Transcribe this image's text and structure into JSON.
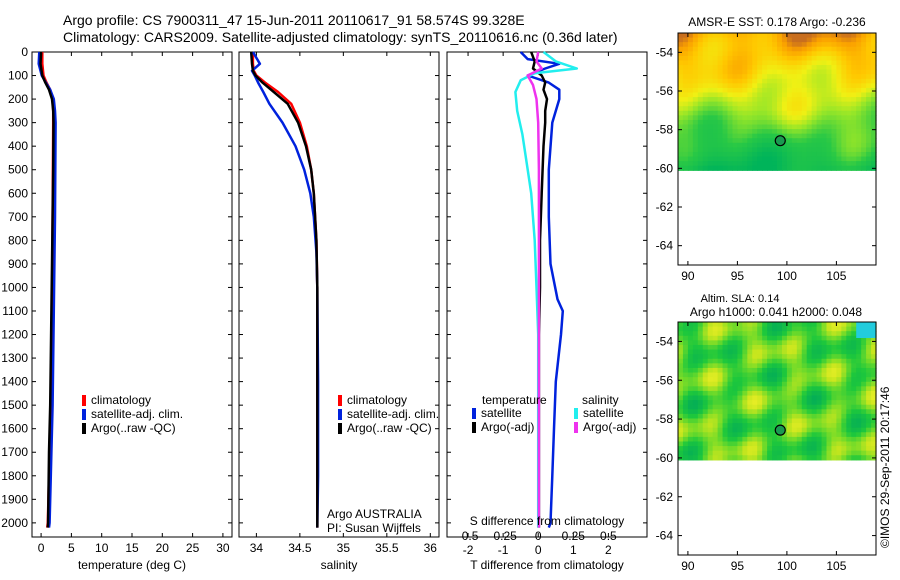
{
  "header": {
    "title1": "Argo profile: CS 7900311_47 15-Jun-2011 20110617_91 58.574S 99.328E",
    "title2": "Climatology: CARS2009. Satellite-adjusted climatology: synTS_20110616.nc (0.36d later)"
  },
  "colors": {
    "red": "#ff0000",
    "blue": "#0022dd",
    "black": "#000000",
    "cyan": "#22eeee",
    "magenta": "#ee33ee"
  },
  "depth_axis": {
    "ticks": [
      0,
      100,
      200,
      300,
      400,
      500,
      600,
      700,
      800,
      900,
      1000,
      1100,
      1200,
      1300,
      1400,
      1500,
      1600,
      1700,
      1800,
      1900,
      2000
    ],
    "range": [
      0,
      2060
    ]
  },
  "chart_data": [
    {
      "type": "line",
      "xlabel": "temperature (deg C)",
      "xlim": [
        -1.5,
        31.5
      ],
      "xticks": [
        0,
        5,
        10,
        15,
        20,
        25,
        30
      ],
      "legend": {
        "position": "lower-right",
        "entries": [
          "climatology",
          "satellite-adj. clim.",
          "Argo(..raw -QC)"
        ]
      },
      "series": [
        {
          "name": "climatology",
          "color": "red",
          "x": [
            0.2,
            0.2,
            0.4,
            0.9,
            1.5,
            1.9,
            2.0,
            2.0,
            1.95,
            1.9,
            1.85,
            1.8,
            1.7,
            1.6,
            1.5,
            1.4,
            1.3,
            1.2,
            1.1,
            1.0
          ],
          "y": [
            0,
            50,
            100,
            130,
            160,
            200,
            250,
            300,
            500,
            700,
            900,
            1100,
            1300,
            1500,
            1600,
            1700,
            1800,
            1900,
            2000,
            2020
          ]
        },
        {
          "name": "satellite-adj. clim.",
          "color": "blue",
          "x": [
            -0.3,
            -0.4,
            0.1,
            0.8,
            1.5,
            2.1,
            2.3,
            2.4,
            2.35,
            2.3,
            2.2,
            2.1,
            2.0,
            1.9,
            1.8,
            1.7,
            1.6,
            1.5,
            1.4,
            1.3
          ],
          "y": [
            0,
            50,
            100,
            130,
            160,
            200,
            250,
            300,
            500,
            700,
            900,
            1100,
            1300,
            1500,
            1600,
            1700,
            1800,
            1900,
            2000,
            2020
          ]
        },
        {
          "name": "Argo(..raw -QC)",
          "color": "black",
          "x": [
            0.0,
            -0.1,
            0.2,
            0.7,
            1.3,
            1.8,
            2.0,
            2.05,
            2.0,
            1.9,
            1.8,
            1.7,
            1.6,
            1.5,
            1.4,
            1.3,
            1.25,
            1.2,
            1.15,
            1.1
          ],
          "y": [
            0,
            50,
            100,
            130,
            160,
            200,
            250,
            300,
            500,
            700,
            900,
            1100,
            1300,
            1500,
            1600,
            1700,
            1800,
            1900,
            2000,
            2020
          ]
        }
      ]
    },
    {
      "type": "line",
      "xlabel": "salinity",
      "xlim": [
        33.8,
        36.1
      ],
      "xticks": [
        34,
        34.5,
        35,
        35.5,
        36
      ],
      "legend": {
        "position": "lower-right",
        "entries": [
          "climatology",
          "satellite-adj. clim.",
          "Argo(..raw -QC)"
        ]
      },
      "annotation": [
        "Argo AUSTRALIA",
        "PI: Susan Wijffels"
      ],
      "series": [
        {
          "name": "climatology",
          "color": "red",
          "x": [
            33.96,
            33.96,
            33.97,
            34.0,
            34.1,
            34.25,
            34.4,
            34.5,
            34.58,
            34.63,
            34.66,
            34.69,
            34.7,
            34.7,
            34.7,
            34.7
          ],
          "y": [
            0,
            50,
            80,
            100,
            130,
            170,
            220,
            300,
            400,
            500,
            600,
            800,
            1000,
            1400,
            1800,
            2020
          ]
        },
        {
          "name": "satellite-adj. clim.",
          "color": "blue",
          "x": [
            33.96,
            34.04,
            33.95,
            33.98,
            34.02,
            34.08,
            34.15,
            34.3,
            34.45,
            34.55,
            34.62,
            34.66,
            34.69,
            34.7,
            34.71,
            34.71,
            34.7
          ],
          "y": [
            0,
            50,
            80,
            100,
            130,
            170,
            220,
            300,
            400,
            500,
            600,
            700,
            850,
            1000,
            1400,
            1800,
            2020
          ]
        },
        {
          "name": "Argo(..raw -QC)",
          "color": "black",
          "x": [
            33.94,
            33.95,
            33.96,
            33.99,
            34.07,
            34.2,
            34.36,
            34.48,
            34.57,
            34.63,
            34.66,
            34.69,
            34.7,
            34.7,
            34.7,
            34.7
          ],
          "y": [
            0,
            50,
            80,
            100,
            130,
            170,
            220,
            300,
            400,
            500,
            600,
            800,
            1000,
            1400,
            1800,
            2020
          ]
        }
      ]
    },
    {
      "type": "line",
      "xlabel": "T difference from climatology",
      "xlabel2": "S difference from climatology",
      "xlim": [
        -2.6,
        3.1
      ],
      "xticks": [
        -2,
        -1,
        0,
        1,
        2
      ],
      "xticks2": [
        -0.5,
        -0.25,
        0,
        0.25,
        0.5
      ],
      "legend": {
        "position": "lower-right",
        "headers": [
          "temperature",
          "salinity"
        ],
        "entries": [
          "satellite",
          "Argo(-adj)",
          "satellite",
          "Argo(-adj)"
        ]
      },
      "series": [
        {
          "name": "temperature satellite",
          "color": "blue",
          "x": [
            -0.5,
            -0.3,
            0.6,
            0.2,
            -0.3,
            0.3,
            0.6,
            0.6,
            0.4,
            0.3,
            0.3,
            0.35,
            0.55,
            0.7,
            0.65,
            0.5,
            0.45,
            0.4,
            0.35,
            0.3
          ],
          "y": [
            0,
            30,
            50,
            70,
            100,
            130,
            160,
            200,
            300,
            500,
            700,
            900,
            1050,
            1100,
            1200,
            1400,
            1600,
            1800,
            2000,
            2020
          ]
        },
        {
          "name": "temperature Argo(-adj)",
          "color": "black",
          "x": [
            -0.2,
            -0.1,
            -0.15,
            0.1,
            0.2,
            0.15,
            0.25,
            0.2,
            0.2,
            0.15,
            0.1,
            0.05,
            0.05,
            0.02,
            0.02,
            0.02,
            0.02,
            0.02
          ],
          "y": [
            0,
            40,
            70,
            100,
            130,
            160,
            200,
            250,
            300,
            400,
            600,
            800,
            1000,
            1200,
            1400,
            1600,
            1800,
            2020
          ]
        },
        {
          "name": "salinity satellite",
          "color": "cyan",
          "x": [
            0.15,
            0.5,
            1.1,
            -0.1,
            -0.5,
            -0.65,
            -0.6,
            -0.45,
            -0.3,
            -0.2,
            -0.1,
            -0.05,
            0.0,
            0.0,
            0.0,
            0.0
          ],
          "y": [
            0,
            40,
            70,
            90,
            120,
            170,
            250,
            350,
            500,
            600,
            800,
            1000,
            1200,
            1500,
            1800,
            2020
          ]
        },
        {
          "name": "salinity Argo(-adj)",
          "color": "magenta",
          "x": [
            0.0,
            -0.05,
            0.1,
            -0.3,
            -0.15,
            -0.05,
            0.0,
            0.02,
            0.02,
            0.02,
            0.02
          ],
          "y": [
            0,
            40,
            70,
            100,
            140,
            200,
            300,
            500,
            1000,
            1500,
            2020
          ]
        }
      ]
    },
    {
      "type": "heatmap",
      "title": "AMSR-E SST: 0.178 Argo: -0.236",
      "xticks": [
        90,
        95,
        100,
        105
      ],
      "yticks": [
        -54,
        -56,
        -58,
        -60,
        -62,
        -64
      ],
      "xlim": [
        89,
        109
      ],
      "ylim": [
        -65,
        -53
      ],
      "data_extent": {
        "lon": [
          89,
          109
        ],
        "lat": [
          -60.1,
          -53
        ]
      },
      "marker": {
        "lon": 99.33,
        "lat": -58.57
      }
    },
    {
      "type": "heatmap",
      "title": "Altim. SLA: 0.14",
      "subtitle": "Argo h1000: 0.041 h2000: 0.048",
      "xticks": [
        90,
        95,
        100,
        105
      ],
      "yticks": [
        -54,
        -56,
        -58,
        -60,
        -62,
        -64
      ],
      "xlim": [
        89,
        109
      ],
      "ylim": [
        -65,
        -53
      ],
      "data_extent": {
        "lon": [
          89,
          109
        ],
        "lat": [
          -60.1,
          -53
        ]
      },
      "marker": {
        "lon": 99.33,
        "lat": -58.57
      }
    }
  ],
  "credit": "©IMOS 29-Sep-2011 20:17:46"
}
